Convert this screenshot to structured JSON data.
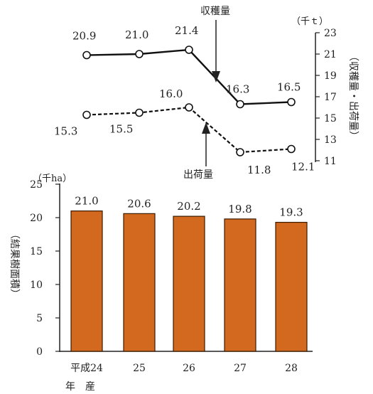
{
  "chart_data": [
    {
      "type": "line",
      "unit": "（千ｔ）",
      "y_axis_label": "（収穫量・出荷量）",
      "ylim": [
        11,
        23
      ],
      "yticks": [
        "23",
        "21",
        "19",
        "17",
        "15",
        "13",
        "11"
      ],
      "categories": [
        "平成24年産",
        "25",
        "26",
        "27",
        "28"
      ],
      "series": [
        {
          "name": "収穫量",
          "values": [
            20.9,
            21.0,
            21.4,
            16.3,
            16.5
          ],
          "labels": [
            "20.9",
            "21.0",
            "21.4",
            "16.3",
            "16.5"
          ],
          "style": "solid"
        },
        {
          "name": "出荷量",
          "values": [
            15.3,
            15.5,
            16.0,
            11.8,
            12.1
          ],
          "labels": [
            "15.3",
            "15.5",
            "16.0",
            "11.8",
            "12.1"
          ],
          "style": "dashed"
        }
      ],
      "grid": false
    },
    {
      "type": "bar",
      "unit": "（千ha）",
      "y_axis_label": "（結果樹面積）",
      "ylim": [
        0,
        25
      ],
      "yticks": [
        "25",
        "20",
        "15",
        "10",
        "5",
        "0"
      ],
      "categories": [
        "平成24",
        "25",
        "26",
        "27",
        "28"
      ],
      "first_category_sub": "年　産",
      "values": [
        21.0,
        20.6,
        20.2,
        19.8,
        19.3
      ],
      "labels": [
        "21.0",
        "20.6",
        "20.2",
        "19.8",
        "19.3"
      ],
      "bar_color": "#d2691e",
      "grid": false
    }
  ]
}
